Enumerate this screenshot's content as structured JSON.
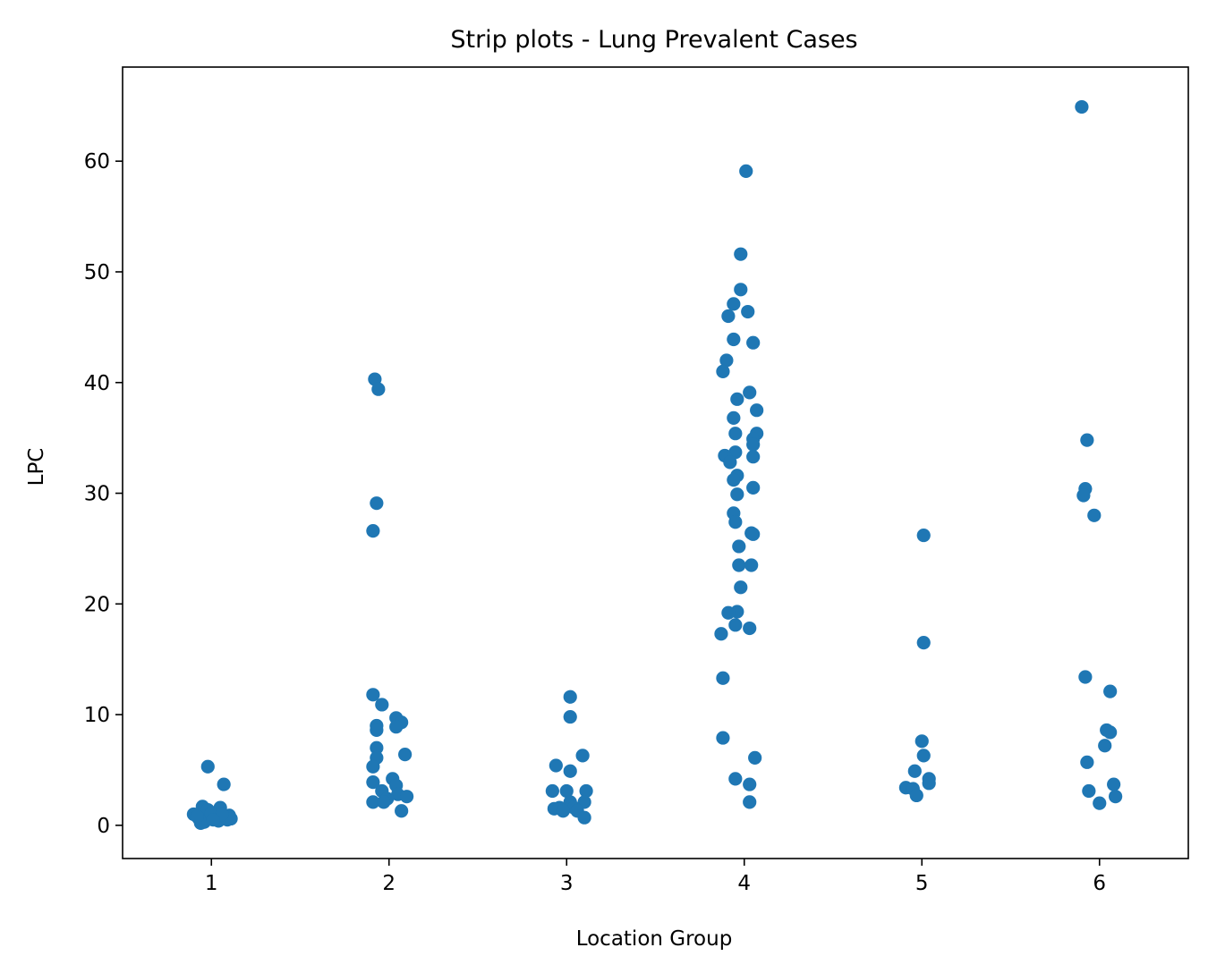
{
  "chart_data": {
    "type": "scatter",
    "title": "Strip plots - Lung Prevalent Cases",
    "xlabel": "Location Group",
    "ylabel": "LPC",
    "categories": [
      "1",
      "2",
      "3",
      "4",
      "5",
      "6"
    ],
    "ylim": [
      -3,
      68.5
    ],
    "yticks": [
      0,
      10,
      20,
      30,
      40,
      50,
      60
    ],
    "grid": false,
    "marker_color": "#1f77b4",
    "points": [
      {
        "group": "1",
        "jitter": -0.02,
        "y": 5.3
      },
      {
        "group": "1",
        "jitter": 0.07,
        "y": 3.7
      },
      {
        "group": "1",
        "jitter": -0.05,
        "y": 1.7
      },
      {
        "group": "1",
        "jitter": -0.02,
        "y": 1.4
      },
      {
        "group": "1",
        "jitter": 0.05,
        "y": 1.6
      },
      {
        "group": "1",
        "jitter": -0.1,
        "y": 1.0
      },
      {
        "group": "1",
        "jitter": 0.1,
        "y": 0.9
      },
      {
        "group": "1",
        "jitter": -0.07,
        "y": 0.6
      },
      {
        "group": "1",
        "jitter": 0.02,
        "y": 0.7
      },
      {
        "group": "1",
        "jitter": -0.04,
        "y": 0.3
      },
      {
        "group": "1",
        "jitter": 0.04,
        "y": 0.4
      },
      {
        "group": "1",
        "jitter": 0.09,
        "y": 0.5
      },
      {
        "group": "1",
        "jitter": 0.0,
        "y": 1.1
      },
      {
        "group": "1",
        "jitter": -0.06,
        "y": 0.2
      },
      {
        "group": "1",
        "jitter": 0.11,
        "y": 0.6
      },
      {
        "group": "1",
        "jitter": -0.08,
        "y": 0.8
      },
      {
        "group": "1",
        "jitter": 0.06,
        "y": 1.0
      },
      {
        "group": "1",
        "jitter": 0.01,
        "y": 0.5
      },
      {
        "group": "2",
        "jitter": -0.08,
        "y": 40.3
      },
      {
        "group": "2",
        "jitter": -0.06,
        "y": 39.4
      },
      {
        "group": "2",
        "jitter": -0.07,
        "y": 29.1
      },
      {
        "group": "2",
        "jitter": -0.09,
        "y": 26.6
      },
      {
        "group": "2",
        "jitter": -0.09,
        "y": 11.8
      },
      {
        "group": "2",
        "jitter": -0.04,
        "y": 10.9
      },
      {
        "group": "2",
        "jitter": 0.04,
        "y": 9.7
      },
      {
        "group": "2",
        "jitter": 0.07,
        "y": 9.3
      },
      {
        "group": "2",
        "jitter": -0.07,
        "y": 9.0
      },
      {
        "group": "2",
        "jitter": 0.04,
        "y": 8.9
      },
      {
        "group": "2",
        "jitter": -0.07,
        "y": 8.6
      },
      {
        "group": "2",
        "jitter": -0.07,
        "y": 7.0
      },
      {
        "group": "2",
        "jitter": 0.09,
        "y": 6.4
      },
      {
        "group": "2",
        "jitter": -0.07,
        "y": 6.1
      },
      {
        "group": "2",
        "jitter": -0.09,
        "y": 5.3
      },
      {
        "group": "2",
        "jitter": 0.02,
        "y": 4.2
      },
      {
        "group": "2",
        "jitter": -0.09,
        "y": 3.9
      },
      {
        "group": "2",
        "jitter": 0.04,
        "y": 3.6
      },
      {
        "group": "2",
        "jitter": -0.04,
        "y": 3.1
      },
      {
        "group": "2",
        "jitter": 0.05,
        "y": 2.8
      },
      {
        "group": "2",
        "jitter": 0.1,
        "y": 2.6
      },
      {
        "group": "2",
        "jitter": -0.01,
        "y": 2.4
      },
      {
        "group": "2",
        "jitter": -0.09,
        "y": 2.1
      },
      {
        "group": "2",
        "jitter": -0.03,
        "y": 2.1
      },
      {
        "group": "2",
        "jitter": 0.07,
        "y": 1.3
      },
      {
        "group": "3",
        "jitter": 0.02,
        "y": 11.6
      },
      {
        "group": "3",
        "jitter": 0.02,
        "y": 9.8
      },
      {
        "group": "3",
        "jitter": 0.09,
        "y": 6.3
      },
      {
        "group": "3",
        "jitter": -0.06,
        "y": 5.4
      },
      {
        "group": "3",
        "jitter": 0.02,
        "y": 4.9
      },
      {
        "group": "3",
        "jitter": -0.08,
        "y": 3.1
      },
      {
        "group": "3",
        "jitter": 0.0,
        "y": 3.1
      },
      {
        "group": "3",
        "jitter": 0.11,
        "y": 3.1
      },
      {
        "group": "3",
        "jitter": 0.02,
        "y": 2.1
      },
      {
        "group": "3",
        "jitter": 0.1,
        "y": 2.1
      },
      {
        "group": "3",
        "jitter": -0.07,
        "y": 1.5
      },
      {
        "group": "3",
        "jitter": -0.04,
        "y": 1.6
      },
      {
        "group": "3",
        "jitter": 0.04,
        "y": 1.6
      },
      {
        "group": "3",
        "jitter": -0.02,
        "y": 1.3
      },
      {
        "group": "3",
        "jitter": 0.06,
        "y": 1.3
      },
      {
        "group": "3",
        "jitter": 0.1,
        "y": 0.7
      },
      {
        "group": "4",
        "jitter": 0.01,
        "y": 59.1
      },
      {
        "group": "4",
        "jitter": -0.02,
        "y": 51.6
      },
      {
        "group": "4",
        "jitter": -0.02,
        "y": 48.4
      },
      {
        "group": "4",
        "jitter": -0.06,
        "y": 47.1
      },
      {
        "group": "4",
        "jitter": 0.02,
        "y": 46.4
      },
      {
        "group": "4",
        "jitter": -0.09,
        "y": 46.0
      },
      {
        "group": "4",
        "jitter": -0.06,
        "y": 43.9
      },
      {
        "group": "4",
        "jitter": 0.05,
        "y": 43.6
      },
      {
        "group": "4",
        "jitter": -0.1,
        "y": 42.0
      },
      {
        "group": "4",
        "jitter": -0.12,
        "y": 41.0
      },
      {
        "group": "4",
        "jitter": 0.03,
        "y": 39.1
      },
      {
        "group": "4",
        "jitter": -0.04,
        "y": 38.5
      },
      {
        "group": "4",
        "jitter": 0.07,
        "y": 37.5
      },
      {
        "group": "4",
        "jitter": -0.06,
        "y": 36.8
      },
      {
        "group": "4",
        "jitter": -0.05,
        "y": 35.4
      },
      {
        "group": "4",
        "jitter": 0.07,
        "y": 35.4
      },
      {
        "group": "4",
        "jitter": 0.05,
        "y": 34.9
      },
      {
        "group": "4",
        "jitter": 0.05,
        "y": 34.4
      },
      {
        "group": "4",
        "jitter": -0.05,
        "y": 33.7
      },
      {
        "group": "4",
        "jitter": -0.11,
        "y": 33.4
      },
      {
        "group": "4",
        "jitter": 0.05,
        "y": 33.3
      },
      {
        "group": "4",
        "jitter": -0.08,
        "y": 32.8
      },
      {
        "group": "4",
        "jitter": -0.04,
        "y": 31.6
      },
      {
        "group": "4",
        "jitter": -0.06,
        "y": 31.2
      },
      {
        "group": "4",
        "jitter": 0.05,
        "y": 30.5
      },
      {
        "group": "4",
        "jitter": -0.04,
        "y": 29.9
      },
      {
        "group": "4",
        "jitter": -0.06,
        "y": 28.2
      },
      {
        "group": "4",
        "jitter": -0.05,
        "y": 27.4
      },
      {
        "group": "4",
        "jitter": 0.04,
        "y": 26.4
      },
      {
        "group": "4",
        "jitter": 0.05,
        "y": 26.3
      },
      {
        "group": "4",
        "jitter": -0.03,
        "y": 25.2
      },
      {
        "group": "4",
        "jitter": -0.03,
        "y": 23.5
      },
      {
        "group": "4",
        "jitter": 0.04,
        "y": 23.5
      },
      {
        "group": "4",
        "jitter": -0.02,
        "y": 21.5
      },
      {
        "group": "4",
        "jitter": -0.04,
        "y": 19.3
      },
      {
        "group": "4",
        "jitter": -0.09,
        "y": 19.2
      },
      {
        "group": "4",
        "jitter": -0.05,
        "y": 18.1
      },
      {
        "group": "4",
        "jitter": 0.03,
        "y": 17.8
      },
      {
        "group": "4",
        "jitter": -0.13,
        "y": 17.3
      },
      {
        "group": "4",
        "jitter": -0.12,
        "y": 13.3
      },
      {
        "group": "4",
        "jitter": -0.12,
        "y": 7.9
      },
      {
        "group": "4",
        "jitter": 0.06,
        "y": 6.1
      },
      {
        "group": "4",
        "jitter": -0.05,
        "y": 4.2
      },
      {
        "group": "4",
        "jitter": 0.03,
        "y": 3.7
      },
      {
        "group": "4",
        "jitter": 0.03,
        "y": 2.1
      },
      {
        "group": "5",
        "jitter": 0.01,
        "y": 26.2
      },
      {
        "group": "5",
        "jitter": 0.01,
        "y": 16.5
      },
      {
        "group": "5",
        "jitter": 0.0,
        "y": 7.6
      },
      {
        "group": "5",
        "jitter": 0.01,
        "y": 6.3
      },
      {
        "group": "5",
        "jitter": -0.04,
        "y": 4.9
      },
      {
        "group": "5",
        "jitter": 0.04,
        "y": 4.2
      },
      {
        "group": "5",
        "jitter": 0.04,
        "y": 3.8
      },
      {
        "group": "5",
        "jitter": -0.09,
        "y": 3.4
      },
      {
        "group": "5",
        "jitter": -0.05,
        "y": 3.3
      },
      {
        "group": "5",
        "jitter": -0.03,
        "y": 2.7
      },
      {
        "group": "6",
        "jitter": -0.1,
        "y": 64.9
      },
      {
        "group": "6",
        "jitter": -0.07,
        "y": 34.8
      },
      {
        "group": "6",
        "jitter": -0.08,
        "y": 30.4
      },
      {
        "group": "6",
        "jitter": -0.09,
        "y": 29.8
      },
      {
        "group": "6",
        "jitter": -0.03,
        "y": 28.0
      },
      {
        "group": "6",
        "jitter": -0.08,
        "y": 13.4
      },
      {
        "group": "6",
        "jitter": 0.06,
        "y": 12.1
      },
      {
        "group": "6",
        "jitter": 0.04,
        "y": 8.6
      },
      {
        "group": "6",
        "jitter": 0.06,
        "y": 8.4
      },
      {
        "group": "6",
        "jitter": 0.03,
        "y": 7.2
      },
      {
        "group": "6",
        "jitter": -0.07,
        "y": 5.7
      },
      {
        "group": "6",
        "jitter": 0.08,
        "y": 3.7
      },
      {
        "group": "6",
        "jitter": -0.06,
        "y": 3.1
      },
      {
        "group": "6",
        "jitter": 0.09,
        "y": 2.6
      },
      {
        "group": "6",
        "jitter": 0.0,
        "y": 2.0
      }
    ]
  }
}
